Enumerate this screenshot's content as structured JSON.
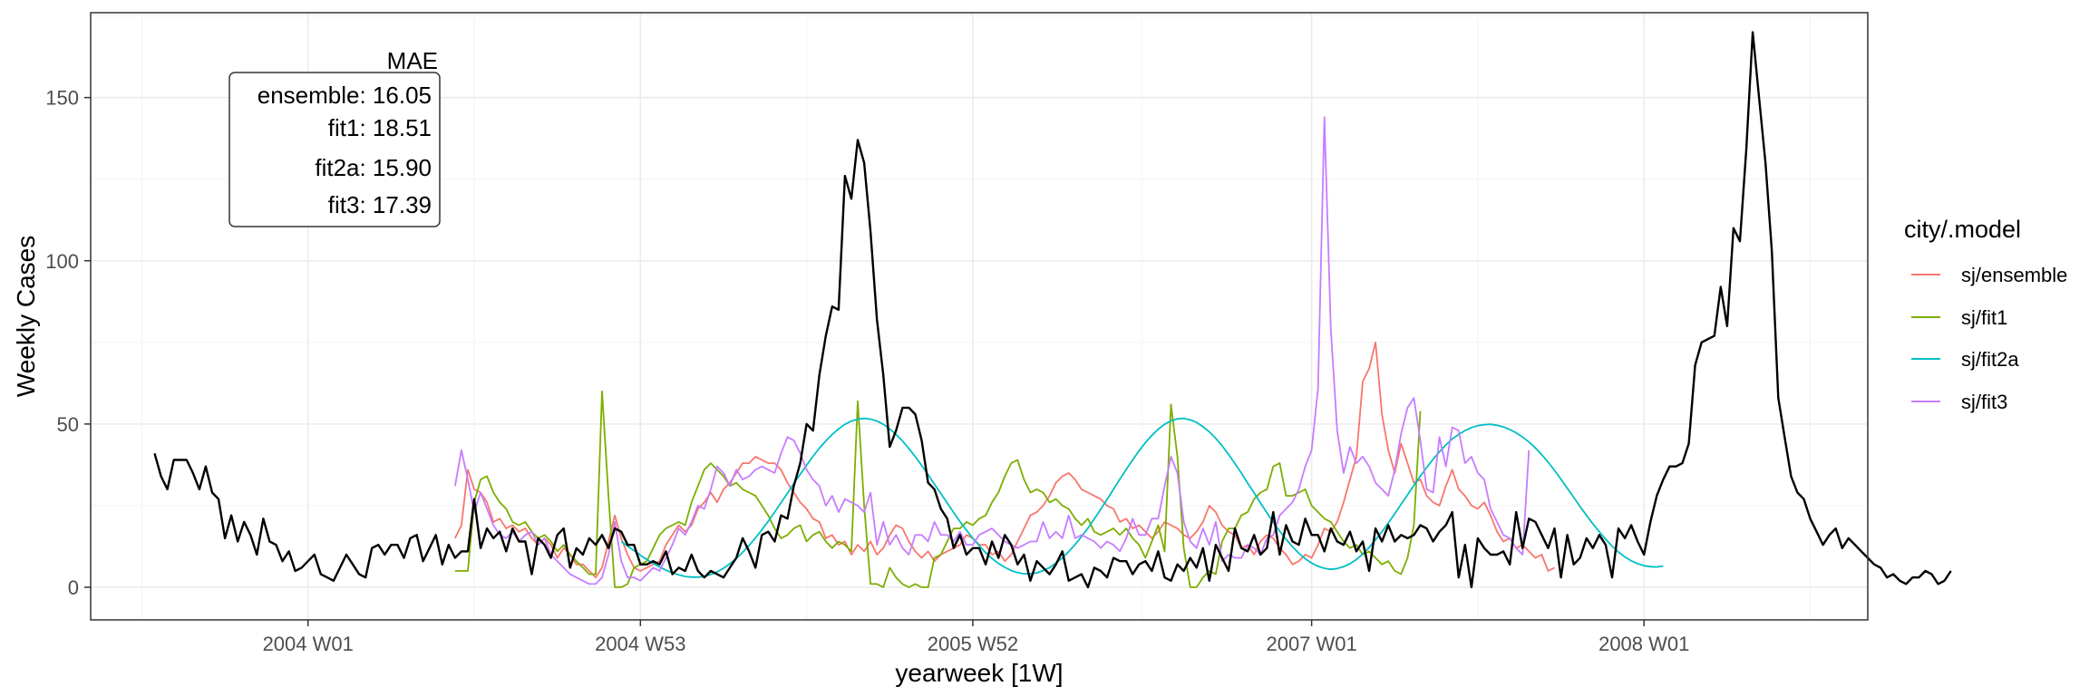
{
  "chart_data": {
    "type": "line",
    "xlabel": "yearweek [1W]",
    "ylabel": "Weekly Cases",
    "x_axis_type": "date",
    "xlim": [
      "2003-05-05",
      "2008-09-01"
    ],
    "ylim": [
      -10,
      176
    ],
    "x_ticks": [
      {
        "date": "2003-12-29",
        "label": "2004 W01"
      },
      {
        "date": "2004-12-27",
        "label": "2004 W53"
      },
      {
        "date": "2005-12-26",
        "label": "2005 W52"
      },
      {
        "date": "2007-01-01",
        "label": "2007 W01"
      },
      {
        "date": "2007-12-31",
        "label": "2008 W01"
      }
    ],
    "y_ticks": [
      0,
      50,
      100,
      150
    ],
    "grid": true,
    "legend": {
      "title": "city/.model",
      "position": "right",
      "entries": [
        {
          "label": "sj/ensemble",
          "color": "#F8766D"
        },
        {
          "label": "sj/fit1",
          "color": "#7CAE00"
        },
        {
          "label": "sj/fit2a",
          "color": "#00BFC4"
        },
        {
          "label": "sj/fit3",
          "color": "#C77CFF"
        }
      ]
    },
    "annotation": {
      "title": "MAE",
      "lines": [
        "ensemble: 16.05",
        "fit1: 18.51",
        "fit2a: 15.90",
        "fit3: 17.39"
      ]
    },
    "actual": {
      "color": "#000000",
      "x_start": "2003-07-14",
      "values": [
        41,
        34,
        30,
        39,
        39,
        39,
        35,
        30,
        37,
        29,
        27,
        15,
        22,
        14,
        20,
        16,
        10,
        21,
        14,
        13,
        8,
        11,
        5,
        6,
        8,
        10,
        4,
        3,
        2,
        6,
        10,
        7,
        4,
        3,
        12,
        13,
        10,
        13,
        13,
        9,
        15,
        16,
        8,
        12,
        16,
        7,
        13,
        9,
        11,
        11,
        27,
        12,
        18,
        15,
        17,
        11,
        18,
        14,
        14,
        4,
        15,
        13,
        9,
        16,
        18,
        6,
        12,
        10,
        15,
        13,
        16,
        12,
        18,
        17,
        13,
        13,
        7,
        7,
        8,
        7,
        11,
        4,
        6,
        5,
        10,
        5,
        3,
        5,
        4,
        3,
        6,
        9,
        15,
        11,
        6,
        16,
        17,
        14,
        22,
        21,
        31,
        38,
        50,
        48,
        65,
        77,
        86,
        85,
        126,
        119,
        137,
        130,
        109,
        82,
        65,
        43,
        48,
        55,
        55,
        53,
        45,
        32,
        30,
        24,
        21,
        12,
        16,
        10,
        12,
        12,
        7,
        14,
        9,
        16,
        13,
        7,
        10,
        2,
        8,
        6,
        4,
        7,
        11,
        2,
        3,
        4,
        0,
        6,
        5,
        3,
        9,
        8,
        8,
        4,
        7,
        8,
        5,
        11,
        3,
        2,
        7,
        5,
        9,
        6,
        12,
        2,
        13,
        9,
        5,
        18,
        12,
        11,
        16,
        10,
        12,
        23,
        10,
        19,
        14,
        13,
        21,
        16,
        16,
        11,
        18,
        14,
        13,
        17,
        11,
        14,
        5,
        18,
        14,
        19,
        14,
        16,
        15,
        16,
        19,
        18,
        14,
        17,
        19,
        23,
        3,
        13,
        0,
        15,
        12,
        10,
        10,
        11,
        7,
        23,
        12,
        21,
        20,
        16,
        12,
        18,
        3,
        16,
        7,
        9,
        15,
        12,
        16,
        13,
        3,
        18,
        15,
        19,
        14,
        10,
        20,
        28,
        33,
        37,
        37,
        38,
        44,
        68,
        75,
        76,
        77,
        92,
        80,
        110,
        106,
        134,
        170,
        150,
        130,
        103,
        58,
        46,
        34,
        29,
        27,
        21,
        17,
        13,
        16,
        18,
        12,
        15,
        13,
        11,
        9,
        7,
        6,
        3,
        4,
        2,
        1,
        3,
        3,
        5,
        4,
        1,
        2,
        5
      ]
    },
    "series": [
      {
        "name": "sj/ensemble",
        "color": "#F8766D",
        "x_start": "2004-06-07",
        "values": [
          15,
          19,
          36,
          30,
          29,
          26,
          20,
          21,
          18,
          19,
          17,
          18,
          15,
          13,
          15,
          13,
          9,
          12,
          10,
          7,
          7,
          5,
          3,
          6,
          14,
          22,
          15,
          10,
          6,
          5,
          6,
          7,
          8,
          13,
          16,
          19,
          17,
          19,
          24,
          26,
          29,
          26,
          30,
          32,
          35,
          38,
          38,
          40,
          39,
          38,
          38,
          36,
          32,
          29,
          26,
          24,
          21,
          20,
          15,
          16,
          13,
          14,
          10,
          13,
          11,
          14,
          10,
          12,
          16,
          19,
          18,
          14,
          11,
          9,
          11,
          8,
          10,
          11,
          12,
          13,
          16,
          15,
          13,
          13,
          10,
          11,
          8,
          10,
          14,
          18,
          22,
          23,
          25,
          28,
          32,
          34,
          35,
          33,
          30,
          29,
          28,
          27,
          25,
          24,
          20,
          21,
          18,
          19,
          17,
          15,
          17,
          20,
          19,
          18,
          16,
          15,
          17,
          20,
          25,
          23,
          19,
          17,
          16,
          12,
          13,
          10,
          14,
          16,
          15,
          12,
          10,
          7,
          8,
          10,
          9,
          13,
          18,
          17,
          20,
          26,
          33,
          40,
          63,
          67,
          75,
          53,
          42,
          35,
          44,
          38,
          32,
          33,
          28,
          26,
          25,
          31,
          36,
          30,
          28,
          25,
          24,
          26,
          22,
          17,
          14,
          15,
          12,
          13,
          11,
          9,
          10,
          5,
          6
        ]
      },
      {
        "name": "sj/fit1",
        "color": "#7CAE00",
        "x_start": "2004-06-07",
        "values": [
          5,
          5,
          5,
          26,
          33,
          34,
          29,
          26,
          24,
          20,
          19,
          20,
          17,
          15,
          16,
          14,
          11,
          13,
          10,
          8,
          6,
          4,
          4,
          60,
          28,
          0,
          0,
          1,
          6,
          7,
          8,
          12,
          16,
          18,
          19,
          20,
          19,
          26,
          31,
          36,
          38,
          36,
          34,
          31,
          32,
          30,
          29,
          28,
          25,
          22,
          18,
          15,
          16,
          18,
          19,
          14,
          16,
          17,
          14,
          12,
          14,
          13,
          11,
          57,
          25,
          1,
          1,
          0,
          6,
          3,
          1,
          0,
          1,
          0,
          0,
          9,
          10,
          14,
          18,
          18,
          20,
          19,
          21,
          22,
          26,
          29,
          34,
          38,
          39,
          33,
          29,
          30,
          29,
          26,
          27,
          25,
          24,
          21,
          19,
          21,
          17,
          16,
          17,
          18,
          16,
          18,
          15,
          13,
          9,
          14,
          19,
          11,
          56,
          40,
          12,
          0,
          0,
          3,
          5,
          4,
          14,
          18,
          18,
          22,
          23,
          27,
          29,
          30,
          37,
          38,
          28,
          28,
          29,
          30,
          25,
          23,
          21,
          20,
          17,
          14,
          12,
          13,
          10,
          11,
          9,
          7,
          8,
          5,
          4,
          9,
          19,
          54
        ]
      },
      {
        "name": "sj/fit2a",
        "color": "#00BFC4",
        "x_start": "2004-12-06",
        "values": [
          14,
          12.6,
          11.2,
          9.8,
          8.5,
          7.3,
          6.2,
          5.2,
          4.4,
          3.8,
          3.3,
          3.1,
          3.1,
          3.3,
          3.9,
          4.7,
          5.8,
          7.2,
          8.8,
          10.7,
          12.8,
          15.1,
          17.6,
          20.2,
          23.0,
          25.9,
          28.8,
          31.8,
          34.6,
          37.4,
          40.1,
          42.6,
          44.8,
          46.8,
          48.5,
          49.9,
          50.9,
          51.5,
          51.7,
          51.5,
          50.9,
          49.9,
          48.5,
          46.8,
          44.8,
          42.5,
          40.0,
          37.3,
          34.5,
          31.6,
          28.7,
          25.8,
          22.9,
          20.1,
          17.5,
          15.0,
          12.7,
          10.6,
          8.8,
          7.3,
          6.1,
          5.1,
          4.5,
          4.1,
          4.1,
          4.4,
          5.1,
          6.0,
          7.4,
          9.0,
          10.9,
          13.1,
          15.5,
          18.1,
          20.9,
          23.9,
          26.9,
          30.0,
          33.1,
          36.1,
          39.0,
          41.8,
          44.3,
          46.5,
          48.4,
          49.9,
          51.0,
          51.6,
          51.7,
          51.3,
          50.5,
          49.2,
          47.6,
          45.6,
          43.3,
          40.7,
          37.9,
          35.0,
          31.9,
          28.9,
          25.8,
          22.8,
          19.9,
          17.2,
          14.7,
          12.4,
          10.4,
          8.7,
          7.4,
          6.4,
          5.8,
          5.5,
          5.7,
          6.3,
          7.2,
          8.5,
          10.2,
          12.2,
          14.5,
          17.0,
          19.7,
          22.5,
          25.4,
          28.3,
          31.2,
          34.0,
          36.7,
          39.2,
          41.5,
          43.6,
          45.4,
          46.8,
          48.0,
          48.9,
          49.5,
          49.8,
          49.9,
          49.6,
          49.1,
          48.3,
          47.3,
          46.0,
          44.5,
          42.7,
          40.6,
          38.3,
          35.8,
          33.1,
          30.3,
          27.5,
          24.7,
          22.0,
          19.4,
          17.0,
          14.7,
          12.6,
          10.8,
          9.3,
          8.1,
          7.2,
          6.6,
          6.3,
          6.2,
          6.5
        ]
      },
      {
        "name": "sj/fit3",
        "color": "#C77CFF",
        "x_start": "2004-06-07",
        "values": [
          31,
          42,
          33,
          23,
          29,
          24,
          19,
          16,
          15,
          17,
          14,
          16,
          17,
          13,
          15,
          10,
          8,
          6,
          4,
          3,
          2,
          1,
          1,
          3,
          10,
          20,
          8,
          3,
          3,
          2,
          4,
          6,
          5,
          9,
          13,
          18,
          16,
          20,
          25,
          24,
          30,
          37,
          35,
          31,
          36,
          33,
          34,
          36,
          37,
          36,
          35,
          41,
          46,
          45,
          41,
          36,
          33,
          31,
          25,
          28,
          23,
          27,
          26,
          25,
          23,
          29,
          13,
          20,
          13,
          16,
          12,
          10,
          16,
          16,
          14,
          20,
          16,
          16,
          14,
          17,
          13,
          13,
          16,
          17,
          18,
          16,
          14,
          13,
          12,
          13,
          14,
          14,
          20,
          15,
          17,
          15,
          22,
          15,
          16,
          15,
          14,
          12,
          14,
          13,
          11,
          15,
          21,
          16,
          16,
          21,
          21,
          31,
          40,
          35,
          20,
          14,
          12,
          18,
          13,
          20,
          8,
          10,
          9,
          9,
          13,
          12,
          10,
          15,
          16,
          22,
          24,
          26,
          30,
          37,
          42,
          61,
          144,
          79,
          48,
          35,
          43,
          38,
          40,
          37,
          32,
          30,
          28,
          36,
          47,
          55,
          58,
          45,
          30,
          29,
          46,
          37,
          49,
          48,
          38,
          40,
          35,
          33,
          24,
          20,
          16,
          15,
          12,
          10,
          42
        ]
      }
    ]
  }
}
